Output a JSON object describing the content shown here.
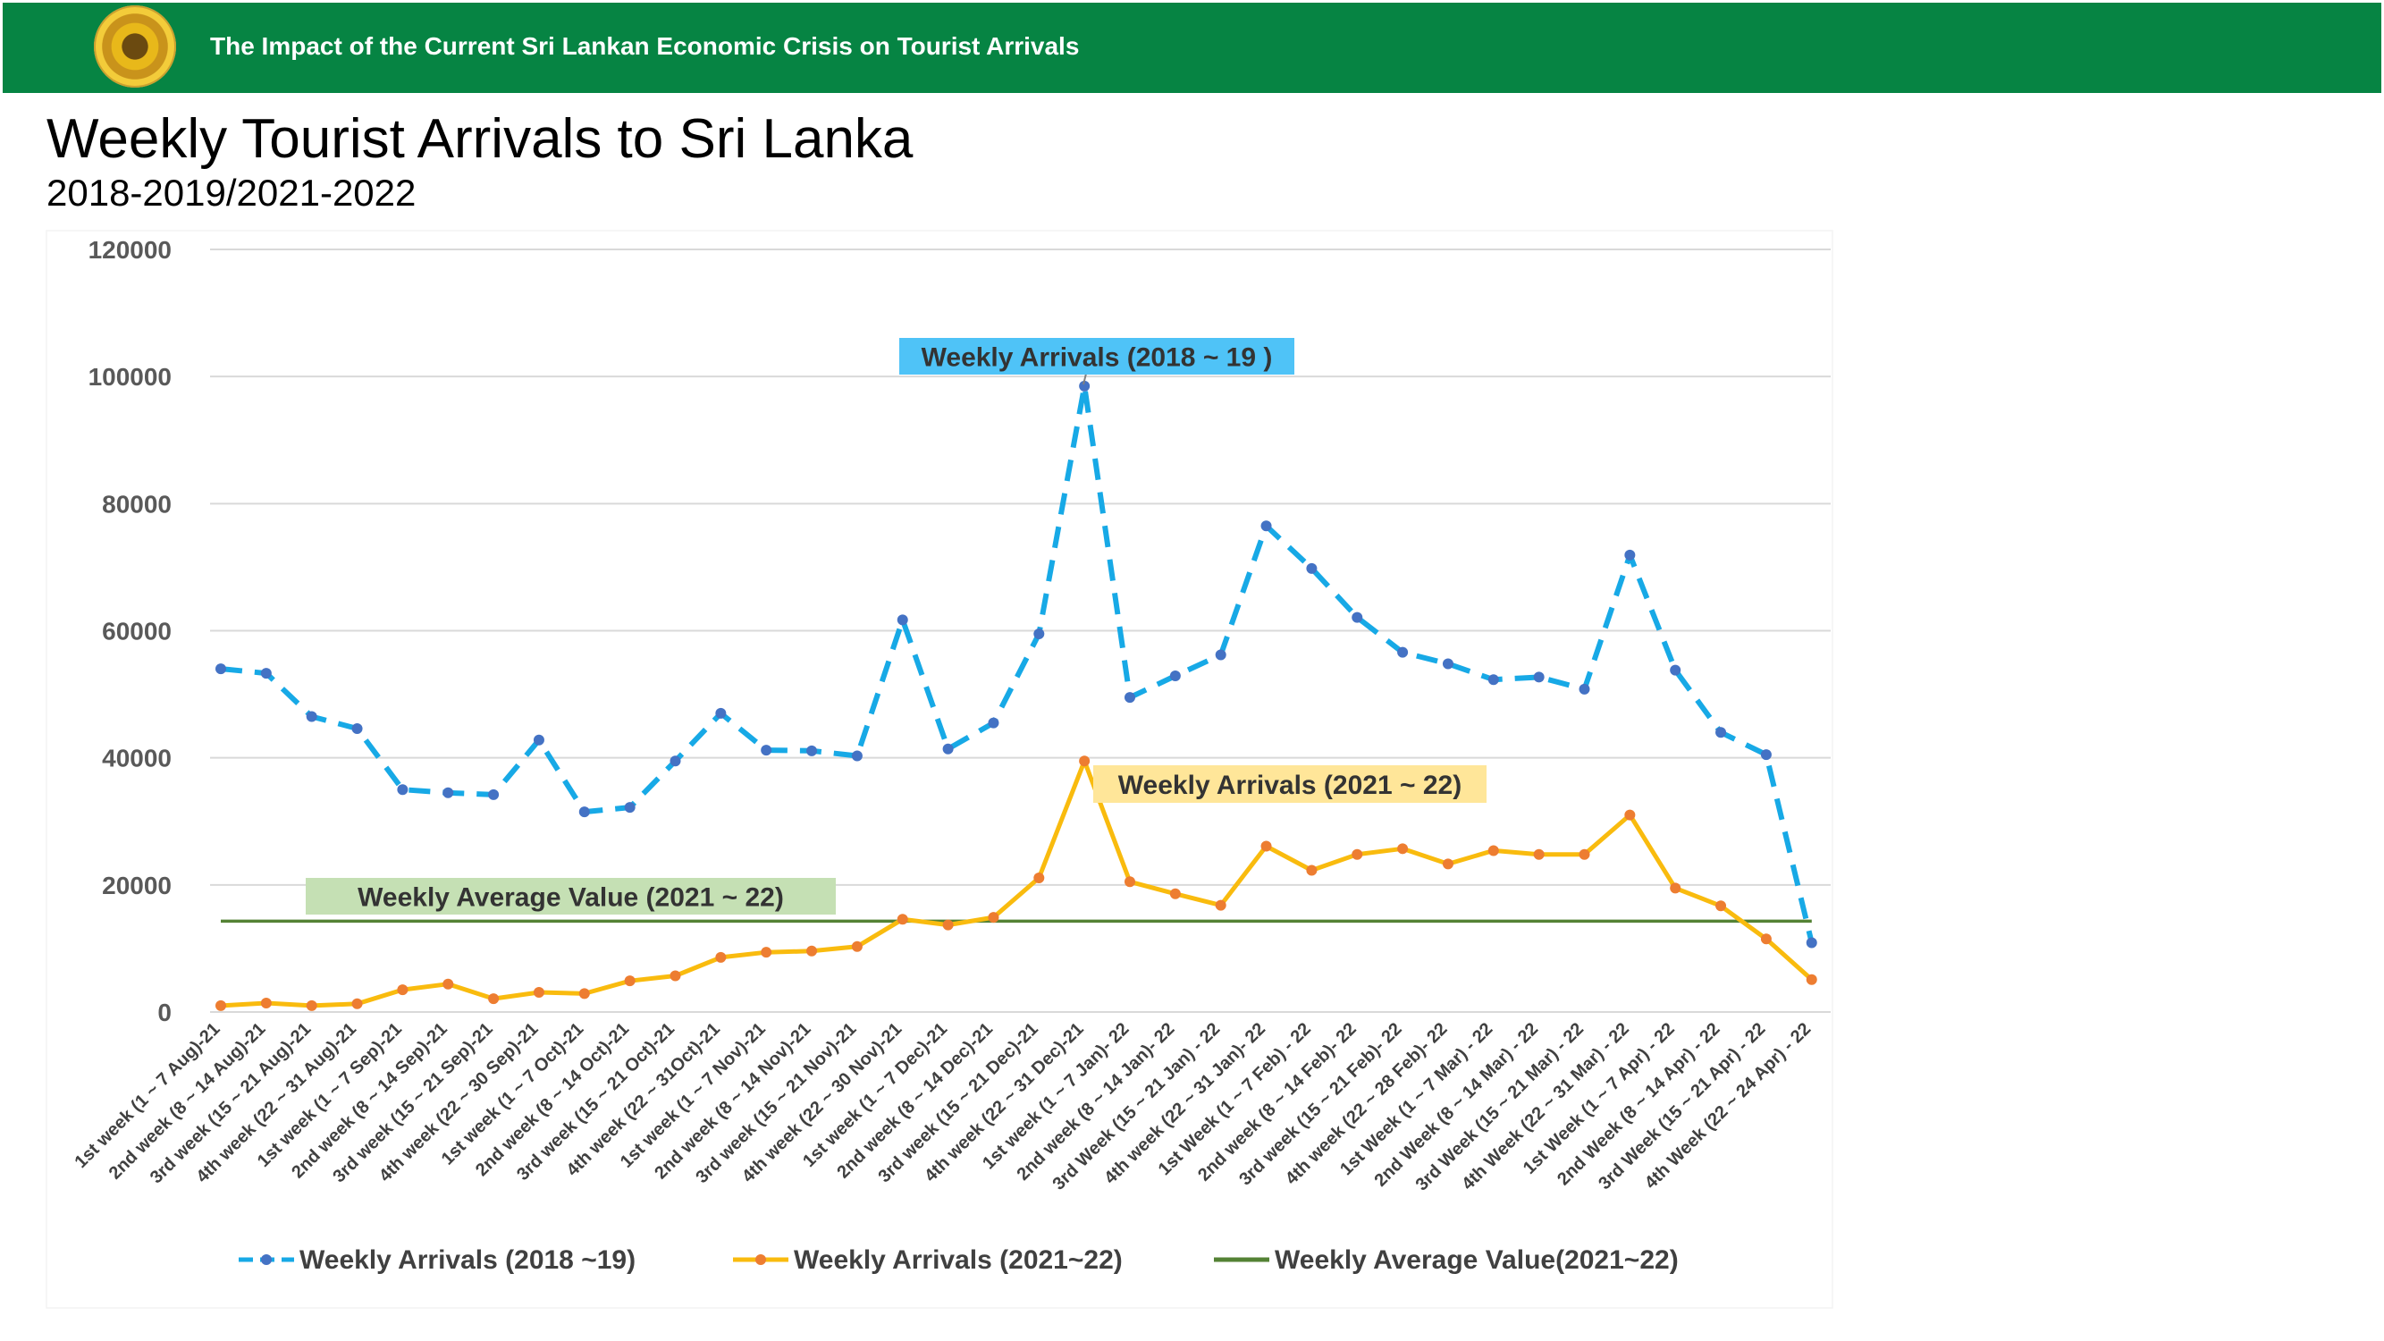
{
  "header": {
    "seal_icon": "central-bank-seal-icon",
    "title": "The Impact of the Current Sri Lankan Economic Crisis on Tourist Arrivals"
  },
  "page": {
    "title": "Weekly Tourist Arrivals to Sri Lanka",
    "subtitle": "2018-2019/2021-2022"
  },
  "colors": {
    "header_bg": "#068443",
    "series_2018_19": "#17A9E6",
    "series_2018_19_marker": "#4472C4",
    "series_2021_22": "#F9BB0E",
    "series_2021_22_marker": "#ED7D31",
    "average": "#548235",
    "callout_2018_19": "#4FC3F7",
    "callout_2021_22": "#FFE699",
    "callout_average": "#C5E0B4"
  },
  "chart_data": {
    "type": "line",
    "ylim": [
      0,
      120000
    ],
    "y_ticks": [
      "120000",
      "100000",
      "80000",
      "60000",
      "40000",
      "20000",
      "0"
    ],
    "grid": true,
    "legend_position": "bottom",
    "categories": [
      "1st week (1 ~ 7 Aug)-21",
      "2nd week (8 ~ 14 Aug)-21",
      "3rd week (15 ~ 21 Aug)-21",
      "4th week (22 ~ 31 Aug)-21",
      "1st week (1 ~ 7 Sep)-21",
      "2nd week (8 ~ 14 Sep)-21",
      "3rd week (15 ~ 21 Sep)-21",
      "4th week (22 ~ 30 Sep)-21",
      "1st week (1 ~ 7 Oct)-21",
      "2nd week (8 ~ 14 Oct)-21",
      "3rd week (15 ~ 21 Oct)-21",
      "4th week (22 ~ 31Oct)-21",
      "1st week (1 ~ 7 Nov)-21",
      "2nd week (8 ~ 14 Nov)-21",
      "3rd week (15 ~ 21 Nov)-21",
      "4th week (22 ~ 30 Nov)-21",
      "1st week (1 ~ 7 Dec)-21",
      "2nd week (8 ~ 14 Dec)-21",
      "3rd week (15 ~ 21 Dec)-21",
      "4th week (22 ~ 31 Dec)-21",
      "1st week (1 ~ 7 Jan)- 22",
      "2nd week (8 ~ 14 Jan)- 22",
      "3rd Week (15 ~ 21 Jan) - 22",
      "4th week (22 ~ 31 Jan)- 22",
      "1st Week (1 ~ 7 Feb) - 22",
      "2nd week (8 ~ 14 Feb)- 22",
      "3rd week (15 ~ 21 Feb)- 22",
      "4th week (22 ~ 28 Feb)- 22",
      "1st Week (1 ~ 7 Mar) - 22",
      "2nd Week (8 ~ 14 Mar) - 22",
      "3rd Week (15 ~ 21 Mar) - 22",
      "4th Week (22 ~ 31 Mar) - 22",
      "1st Week (1 ~ 7 Apr) - 22",
      "2nd Week (8 ~ 14 Apr) - 22",
      "3rd Week (15 ~ 21 Apr) - 22",
      "4th Week (22 ~ 24 Apr) - 22"
    ],
    "series": [
      {
        "name": "Weekly  Arrivals (2018 ~19)",
        "callout": "Weekly Arrivals (2018 ~ 19 )",
        "style": "dashed",
        "values": [
          54000,
          53300,
          46500,
          44600,
          35000,
          34500,
          34200,
          42800,
          31500,
          32200,
          39500,
          47000,
          41200,
          41100,
          40300,
          61700,
          41400,
          45500,
          59500,
          98500,
          49500,
          52900,
          56200,
          76500,
          69800,
          62100,
          56600,
          54800,
          52300,
          52700,
          50800,
          71900,
          53800,
          44000,
          40500,
          10900
        ]
      },
      {
        "name": "Weekly Arrivals (2021~22)",
        "callout": "Weekly Arrivals (2021 ~ 22)",
        "style": "solid",
        "values": [
          1000,
          1400,
          1000,
          1300,
          3500,
          4400,
          2100,
          3100,
          2900,
          4900,
          5700,
          8600,
          9400,
          9600,
          10300,
          14600,
          13700,
          14900,
          21100,
          39500,
          20500,
          18600,
          16800,
          26100,
          22300,
          24800,
          25700,
          23300,
          25400,
          24800,
          24800,
          31000,
          19500,
          16700,
          11500,
          5100
        ]
      },
      {
        "name": "Weekly Average Value(2021~22)",
        "callout": "Weekly Average Value (2021 ~ 22)",
        "style": "solid",
        "values": [
          14300,
          14300,
          14300,
          14300,
          14300,
          14300,
          14300,
          14300,
          14300,
          14300,
          14300,
          14300,
          14300,
          14300,
          14300,
          14300,
          14300,
          14300,
          14300,
          14300,
          14300,
          14300,
          14300,
          14300,
          14300,
          14300,
          14300,
          14300,
          14300,
          14300,
          14300,
          14300,
          14300,
          14300,
          14300,
          14300
        ]
      }
    ]
  }
}
